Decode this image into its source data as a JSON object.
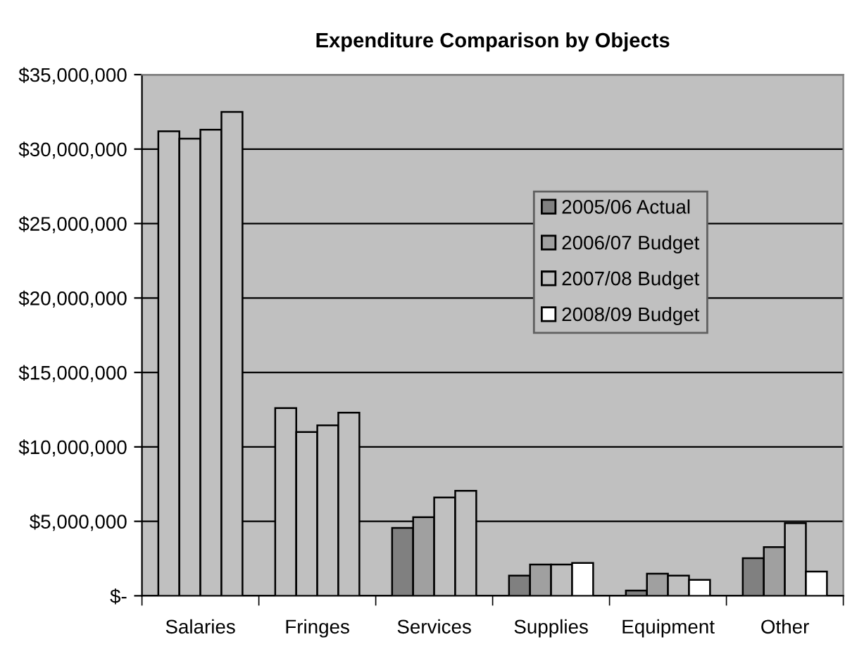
{
  "chart_data": {
    "type": "bar",
    "title": "Expenditure Comparison by Objects",
    "categories": [
      "Salaries",
      "Fringes",
      "Services",
      "Supplies",
      "Equipment",
      "Other"
    ],
    "series": [
      {
        "name": "2005/06 Actual",
        "color": "#808080",
        "colors": [
          "#c0c0c0",
          "#c0c0c0",
          "#808080",
          "#808080",
          "#808080",
          "#808080"
        ],
        "values": [
          31200000,
          12600000,
          4560000,
          1350000,
          350000,
          2520000
        ]
      },
      {
        "name": "2006/07 Budget",
        "color": "#a0a0a0",
        "colors": [
          "#c0c0c0",
          "#c0c0c0",
          "#a0a0a0",
          "#a0a0a0",
          "#a0a0a0",
          "#a0a0a0"
        ],
        "values": [
          30700000,
          11000000,
          5280000,
          2100000,
          1480000,
          3270000
        ]
      },
      {
        "name": "2007/08 Budget",
        "color": "#c0c0c0",
        "colors": [
          "#c0c0c0",
          "#c0c0c0",
          "#c0c0c0",
          "#c0c0c0",
          "#c0c0c0",
          "#c0c0c0"
        ],
        "values": [
          31300000,
          11450000,
          6600000,
          2100000,
          1350000,
          4880000
        ]
      },
      {
        "name": "2008/09 Budget",
        "color": "#ffffff",
        "colors": [
          "#c0c0c0",
          "#c0c0c0",
          "#c0c0c0",
          "#ffffff",
          "#ffffff",
          "#ffffff"
        ],
        "values": [
          32500000,
          12300000,
          7050000,
          2200000,
          1070000,
          1630000
        ]
      }
    ],
    "ylim": [
      0,
      35000000
    ],
    "yticks": [
      {
        "value": 0,
        "label": "$-"
      },
      {
        "value": 5000000,
        "label": "$5,000,000"
      },
      {
        "value": 10000000,
        "label": "$10,000,000"
      },
      {
        "value": 15000000,
        "label": "$15,000,000"
      },
      {
        "value": 20000000,
        "label": "$20,000,000"
      },
      {
        "value": 25000000,
        "label": "$25,000,000"
      },
      {
        "value": 30000000,
        "label": "$30,000,000"
      },
      {
        "value": 35000000,
        "label": "$35,000,000"
      }
    ],
    "grid": "y",
    "legend": "right"
  }
}
